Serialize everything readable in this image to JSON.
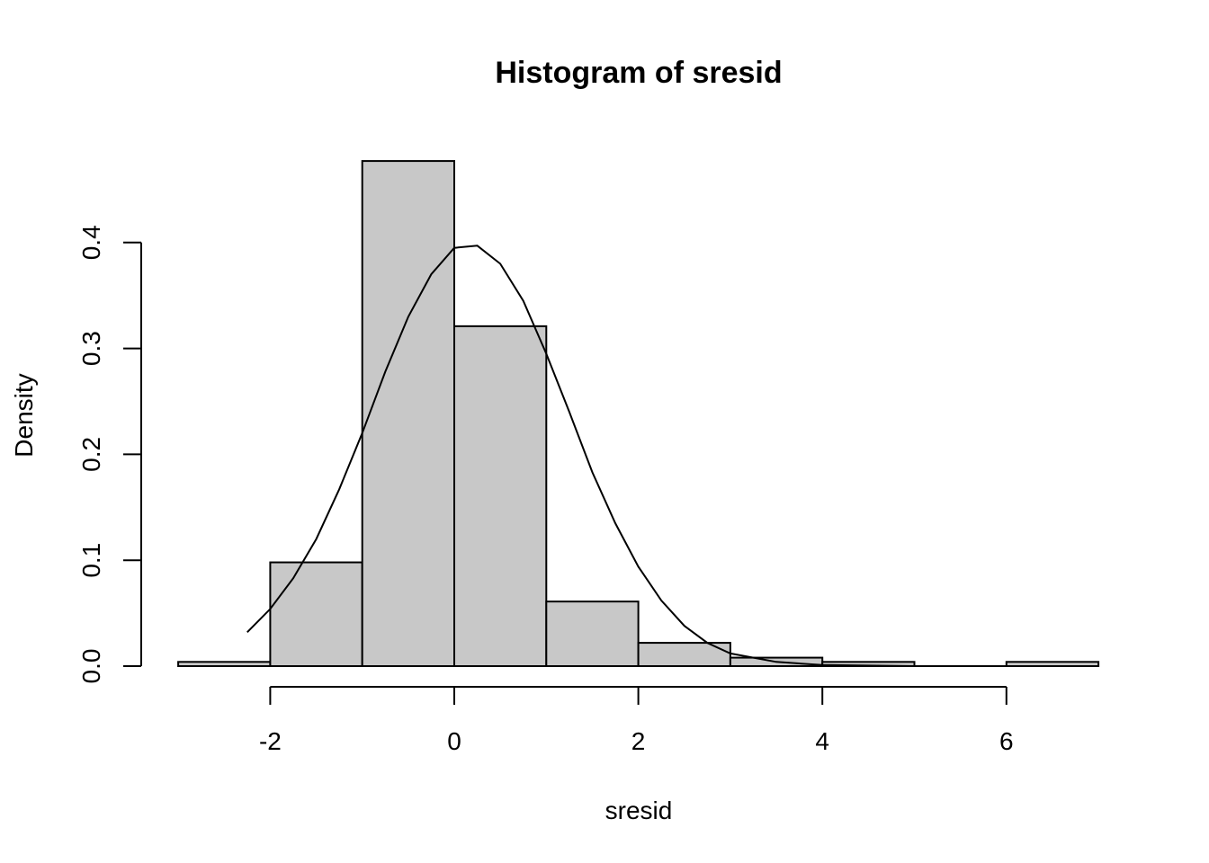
{
  "chart_data": {
    "type": "bar",
    "subtype": "histogram",
    "title": "Histogram of sresid",
    "xlabel": "sresid",
    "ylabel": "Density",
    "bins": [
      {
        "start": -3,
        "end": -2,
        "density": 0.004
      },
      {
        "start": -2,
        "end": -1,
        "density": 0.098
      },
      {
        "start": -1,
        "end": 0,
        "density": 0.477
      },
      {
        "start": 0,
        "end": 1,
        "density": 0.321
      },
      {
        "start": 1,
        "end": 2,
        "density": 0.061
      },
      {
        "start": 2,
        "end": 3,
        "density": 0.022
      },
      {
        "start": 3,
        "end": 4,
        "density": 0.008
      },
      {
        "start": 4,
        "end": 5,
        "density": 0.004
      },
      {
        "start": 5,
        "end": 6,
        "density": 0.0
      },
      {
        "start": 6,
        "end": 7,
        "density": 0.004
      }
    ],
    "density_curve": {
      "x": [
        -2.25,
        -2.0,
        -1.75,
        -1.5,
        -1.25,
        -1.0,
        -0.75,
        -0.5,
        -0.25,
        0.0,
        0.25,
        0.5,
        0.75,
        1.0,
        1.25,
        1.5,
        1.75,
        2.0,
        2.25,
        2.5,
        2.75,
        3.0,
        3.5,
        4.0,
        5.0,
        6.0,
        6.9
      ],
      "y": [
        0.032,
        0.054,
        0.083,
        0.12,
        0.167,
        0.22,
        0.278,
        0.33,
        0.37,
        0.395,
        0.397,
        0.38,
        0.345,
        0.295,
        0.24,
        0.183,
        0.135,
        0.094,
        0.062,
        0.038,
        0.022,
        0.012,
        0.004,
        0.001,
        0.0,
        0.0,
        0.0
      ]
    },
    "xticks": [
      -2,
      0,
      2,
      4,
      6
    ],
    "yticks": [
      0.0,
      0.1,
      0.2,
      0.3,
      0.4
    ],
    "xtick_labels": [
      "-2",
      "0",
      "2",
      "4",
      "6"
    ],
    "ytick_labels": [
      "0.0",
      "0.1",
      "0.2",
      "0.3",
      "0.4"
    ],
    "xlim": [
      -3,
      7
    ],
    "ylim": [
      0,
      0.48
    ],
    "grid": false,
    "bar_color": "#c8c8c8",
    "line_color": "#000000"
  }
}
